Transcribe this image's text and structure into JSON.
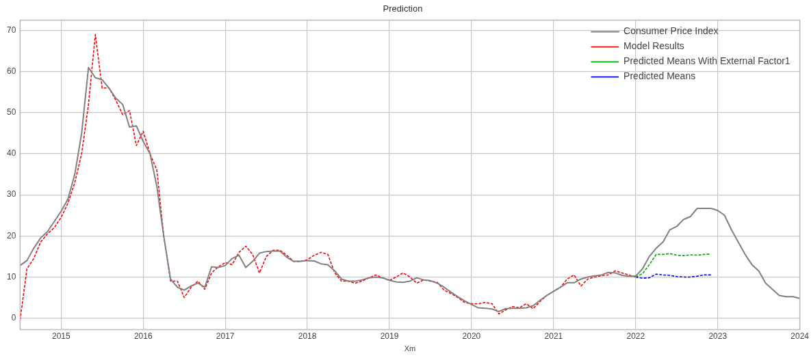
{
  "chart_data": {
    "type": "line",
    "title": "Prediction",
    "xlabel": "Xm",
    "xlim": [
      "2014-07",
      "2024-01"
    ],
    "xticks": [
      "2015",
      "2016",
      "2017",
      "2018",
      "2019",
      "2020",
      "2021",
      "2022",
      "2023",
      "2024"
    ],
    "ylim": [
      -2.8,
      72.5
    ],
    "yticks": [
      0,
      10,
      20,
      30,
      40,
      50,
      60,
      70
    ],
    "grid": true,
    "legend": "top right",
    "marker": "none",
    "series": [
      {
        "name": "Consumer Price Index",
        "color": "#808080",
        "line_style": "solid",
        "x": [
          "2014-07",
          "2014-08",
          "2014-09",
          "2014-10",
          "2014-11",
          "2014-12",
          "2015-01",
          "2015-02",
          "2015-03",
          "2015-04",
          "2015-05",
          "2015-06",
          "2015-07",
          "2015-08",
          "2015-09",
          "2015-10",
          "2015-11",
          "2015-12",
          "2016-01",
          "2016-02",
          "2016-03",
          "2016-04",
          "2016-05",
          "2016-06",
          "2016-07",
          "2016-08",
          "2016-09",
          "2016-10",
          "2016-11",
          "2016-12",
          "2017-01",
          "2017-02",
          "2017-03",
          "2017-04",
          "2017-05",
          "2017-06",
          "2017-07",
          "2017-08",
          "2017-09",
          "2017-10",
          "2017-11",
          "2017-12",
          "2018-01",
          "2018-02",
          "2018-03",
          "2018-04",
          "2018-05",
          "2018-06",
          "2018-07",
          "2018-08",
          "2018-09",
          "2018-10",
          "2018-11",
          "2018-12",
          "2019-01",
          "2019-02",
          "2019-03",
          "2019-04",
          "2019-05",
          "2019-06",
          "2019-07",
          "2019-08",
          "2019-09",
          "2019-10",
          "2019-11",
          "2019-12",
          "2020-01",
          "2020-02",
          "2020-03",
          "2020-04",
          "2020-05",
          "2020-06",
          "2020-07",
          "2020-08",
          "2020-09",
          "2020-10",
          "2020-11",
          "2020-12",
          "2021-01",
          "2021-02",
          "2021-03",
          "2021-04",
          "2021-05",
          "2021-06",
          "2021-07",
          "2021-08",
          "2021-09",
          "2021-10",
          "2021-11",
          "2021-12",
          "2022-01",
          "2022-02",
          "2022-03",
          "2022-04",
          "2022-05",
          "2022-06",
          "2022-07",
          "2022-08",
          "2022-09",
          "2022-10",
          "2022-11",
          "2022-12",
          "2023-01",
          "2023-02",
          "2023-03",
          "2023-04",
          "2023-05",
          "2023-06",
          "2023-07",
          "2023-08",
          "2023-09",
          "2023-10",
          "2023-11",
          "2023-12",
          "2024-01"
        ],
        "values": [
          12.8,
          14,
          17,
          19.5,
          21,
          23.5,
          26,
          29,
          35,
          45,
          61,
          58.5,
          58,
          56,
          53.5,
          52,
          46.5,
          46.8,
          43,
          40,
          32,
          20,
          9.5,
          7.5,
          6.8,
          7.8,
          8.5,
          7.5,
          12.5,
          12.3,
          12.8,
          14.5,
          15.3,
          12.3,
          13.8,
          15.8,
          16.2,
          16.3,
          16.3,
          14.8,
          13.8,
          13.8,
          14,
          13.9,
          13.2,
          13,
          11.5,
          9.5,
          9,
          9,
          9.3,
          9.8,
          10,
          9.8,
          9.2,
          8.8,
          8.7,
          9,
          9.8,
          9.3,
          9.1,
          8.5,
          7.5,
          6.3,
          5.2,
          4.2,
          3.3,
          2.5,
          2.4,
          2.2,
          1.6,
          2.3,
          2.4,
          2.4,
          2.5,
          3,
          4.3,
          5.5,
          6.5,
          7.5,
          8.6,
          8.6,
          9.5,
          10,
          10.3,
          10.5,
          11.1,
          11,
          10.4,
          10.2,
          10.2,
          12,
          15,
          17,
          18.5,
          21.5,
          22.3,
          24,
          24.7,
          26.7,
          26.7,
          26.7,
          26.2,
          25,
          21.5,
          18.5,
          15.5,
          13,
          11.5,
          8.5,
          7,
          5.5,
          5.2,
          5.2,
          4.8
        ]
      },
      {
        "name": "Model Results",
        "color": "#ff0000",
        "line_style": "dashed",
        "x": [
          "2014-07",
          "2014-08",
          "2014-09",
          "2014-10",
          "2014-11",
          "2014-12",
          "2015-01",
          "2015-02",
          "2015-03",
          "2015-04",
          "2015-05",
          "2015-06",
          "2015-07",
          "2015-08",
          "2015-09",
          "2015-10",
          "2015-11",
          "2015-12",
          "2016-01",
          "2016-02",
          "2016-03",
          "2016-04",
          "2016-05",
          "2016-06",
          "2016-07",
          "2016-08",
          "2016-09",
          "2016-10",
          "2016-11",
          "2016-12",
          "2017-01",
          "2017-02",
          "2017-03",
          "2017-04",
          "2017-05",
          "2017-06",
          "2017-07",
          "2017-08",
          "2017-09",
          "2017-10",
          "2017-11",
          "2017-12",
          "2018-01",
          "2018-02",
          "2018-03",
          "2018-04",
          "2018-05",
          "2018-06",
          "2018-07",
          "2018-08",
          "2018-09",
          "2018-10",
          "2018-11",
          "2018-12",
          "2019-01",
          "2019-02",
          "2019-03",
          "2019-04",
          "2019-05",
          "2019-06",
          "2019-07",
          "2019-08",
          "2019-09",
          "2019-10",
          "2019-11",
          "2019-12",
          "2020-01",
          "2020-02",
          "2020-03",
          "2020-04",
          "2020-05",
          "2020-06",
          "2020-07",
          "2020-08",
          "2020-09",
          "2020-10",
          "2020-11",
          "2020-12",
          "2021-01",
          "2021-02",
          "2021-03",
          "2021-04",
          "2021-05",
          "2021-06",
          "2021-07",
          "2021-08",
          "2021-09",
          "2021-10",
          "2021-11",
          "2021-12",
          "2022-01"
        ],
        "values": [
          -0.5,
          12,
          14.5,
          18.5,
          20.5,
          22,
          24.5,
          28,
          33,
          40,
          52,
          69,
          56,
          56,
          53,
          49.5,
          50.5,
          42,
          45.5,
          40,
          36,
          20,
          9,
          9,
          5,
          7.5,
          9,
          7,
          11,
          12.5,
          13.5,
          13,
          16,
          17.5,
          15.5,
          11,
          15,
          16.5,
          16.5,
          15.3,
          13.8,
          13.8,
          14.2,
          15.3,
          16,
          15.5,
          11,
          9,
          9,
          8.5,
          9,
          9.8,
          10.5,
          9.8,
          9.2,
          10,
          11,
          10,
          8.5,
          9.3,
          9,
          8.7,
          6.8,
          6,
          5,
          3.8,
          3.5,
          3.5,
          3.8,
          3.5,
          1,
          2,
          2.8,
          2.5,
          3.5,
          2.3,
          4,
          5.5,
          6.5,
          7.5,
          9.5,
          10.5,
          7.8,
          9.5,
          10,
          10.3,
          10.5,
          11.5,
          11,
          10.5,
          10
        ]
      },
      {
        "name": "Predicted Means With External Factor1",
        "color": "#00aa00",
        "line_style": "dashed",
        "x": [
          "2022-01",
          "2022-02",
          "2022-03",
          "2022-04",
          "2022-05",
          "2022-06",
          "2022-07",
          "2022-08",
          "2022-09",
          "2022-10",
          "2022-11",
          "2022-12"
        ],
        "values": [
          10,
          10.8,
          13,
          15.5,
          15.5,
          15.7,
          15.3,
          15.2,
          15.4,
          15.3,
          15.5,
          15.6
        ]
      },
      {
        "name": "Predicted Means",
        "color": "#0000ff",
        "line_style": "dashed",
        "x": [
          "2022-01",
          "2022-02",
          "2022-03",
          "2022-04",
          "2022-05",
          "2022-06",
          "2022-07",
          "2022-08",
          "2022-09",
          "2022-10",
          "2022-11",
          "2022-12"
        ],
        "values": [
          10,
          9.7,
          9.8,
          10.7,
          10.5,
          10.4,
          10.1,
          10,
          10,
          10.2,
          10.5,
          10.5
        ]
      }
    ]
  }
}
